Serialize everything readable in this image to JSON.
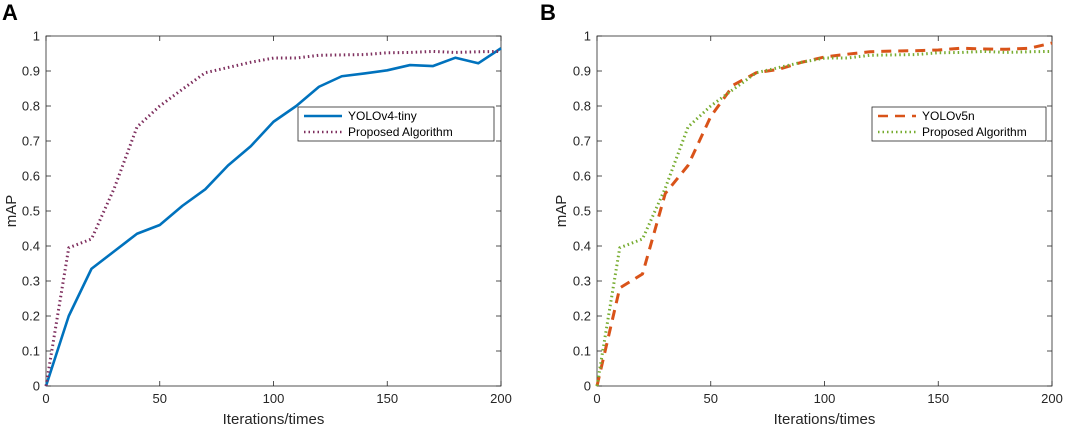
{
  "chart_data": [
    {
      "panel": "A",
      "type": "line",
      "xlabel": "Iterations/times",
      "ylabel": "mAP",
      "xlim": [
        0,
        200
      ],
      "ylim": [
        0,
        1
      ],
      "xticks": [
        0,
        50,
        100,
        150,
        200
      ],
      "yticks": [
        0,
        0.1,
        0.2,
        0.3,
        0.4,
        0.5,
        0.6,
        0.7,
        0.8,
        0.9,
        1
      ],
      "xtick_labels": [
        "0",
        "50",
        "100",
        "150",
        "200"
      ],
      "ytick_labels": [
        "0",
        "0.1",
        "0.2",
        "0.3",
        "0.4",
        "0.5",
        "0.6",
        "0.7",
        "0.8",
        "0.9",
        "1"
      ],
      "legend_position": "upper-right",
      "series": [
        {
          "name": "YOLOv4-tiny",
          "color": "#0072BD",
          "style": "solid",
          "x": [
            0,
            10,
            20,
            30,
            40,
            50,
            60,
            70,
            80,
            90,
            100,
            110,
            120,
            130,
            140,
            150,
            160,
            170,
            180,
            190,
            200
          ],
          "values": [
            0,
            0.2,
            0.335,
            0.385,
            0.435,
            0.46,
            0.515,
            0.562,
            0.63,
            0.685,
            0.755,
            0.8,
            0.855,
            0.885,
            0.893,
            0.902,
            0.917,
            0.914,
            0.938,
            0.922,
            0.965
          ]
        },
        {
          "name": "Proposed Algorithm",
          "color": "#7E2F5E",
          "style": "dotted",
          "x": [
            0,
            10,
            20,
            30,
            40,
            50,
            60,
            70,
            80,
            90,
            100,
            110,
            120,
            130,
            140,
            150,
            160,
            170,
            180,
            190,
            200
          ],
          "values": [
            0,
            0.395,
            0.42,
            0.565,
            0.74,
            0.8,
            0.848,
            0.895,
            0.91,
            0.925,
            0.937,
            0.937,
            0.945,
            0.946,
            0.947,
            0.952,
            0.953,
            0.956,
            0.953,
            0.955,
            0.956
          ]
        }
      ]
    },
    {
      "panel": "B",
      "type": "line",
      "xlabel": "Iterations/times",
      "ylabel": "mAP",
      "xlim": [
        0,
        200
      ],
      "ylim": [
        0,
        1
      ],
      "xticks": [
        0,
        50,
        100,
        150,
        200
      ],
      "yticks": [
        0,
        0.1,
        0.2,
        0.3,
        0.4,
        0.5,
        0.6,
        0.7,
        0.8,
        0.9,
        1
      ],
      "xtick_labels": [
        "0",
        "50",
        "100",
        "150",
        "200"
      ],
      "ytick_labels": [
        "0",
        "0.1",
        "0.2",
        "0.3",
        "0.4",
        "0.5",
        "0.6",
        "0.7",
        "0.8",
        "0.9",
        "1"
      ],
      "legend_position": "upper-right",
      "series": [
        {
          "name": "YOLOv5n",
          "color": "#D95319",
          "style": "dashed",
          "x": [
            0,
            10,
            20,
            30,
            40,
            50,
            60,
            70,
            80,
            90,
            100,
            110,
            120,
            130,
            140,
            150,
            160,
            170,
            180,
            190,
            200
          ],
          "values": [
            0,
            0.28,
            0.32,
            0.55,
            0.63,
            0.77,
            0.86,
            0.895,
            0.905,
            0.925,
            0.94,
            0.948,
            0.955,
            0.957,
            0.958,
            0.96,
            0.965,
            0.963,
            0.962,
            0.965,
            0.98
          ]
        },
        {
          "name": "Proposed Algorithm",
          "color": "#77AC30",
          "style": "dotted",
          "x": [
            0,
            10,
            20,
            30,
            40,
            50,
            60,
            70,
            80,
            90,
            100,
            110,
            120,
            130,
            140,
            150,
            160,
            170,
            180,
            190,
            200
          ],
          "values": [
            0,
            0.395,
            0.42,
            0.565,
            0.74,
            0.8,
            0.848,
            0.895,
            0.91,
            0.925,
            0.937,
            0.937,
            0.945,
            0.946,
            0.947,
            0.952,
            0.953,
            0.956,
            0.953,
            0.955,
            0.956
          ]
        }
      ]
    }
  ]
}
